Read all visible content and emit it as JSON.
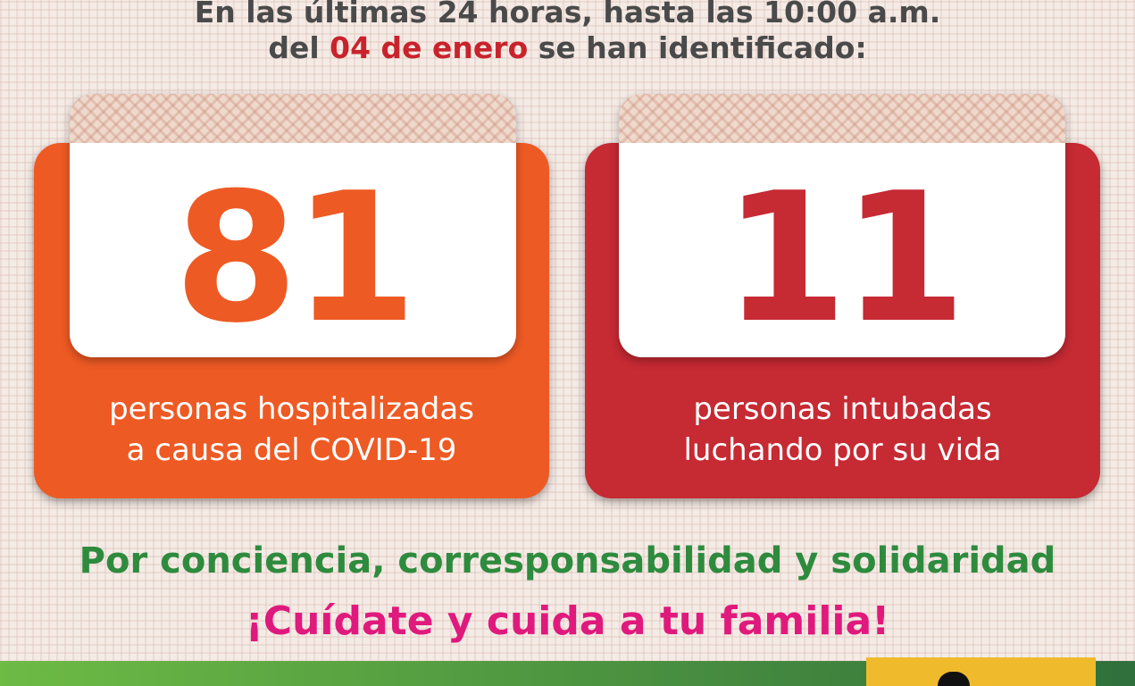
{
  "header": {
    "line1": "En las últimas 24 horas, hasta las 10:00 a.m.",
    "line2_prefix": "del ",
    "line2_date": "04 de enero",
    "line2_suffix": " se han identificado:"
  },
  "cards": [
    {
      "value": "81",
      "label_line1": "personas hospitalizadas",
      "label_line2": "a causa del COVID-19",
      "color": "#ee5a24"
    },
    {
      "value": "11",
      "label_line1": "personas intubadas",
      "label_line2": "luchando por su vida",
      "color": "#c62a33"
    }
  ],
  "slogan": {
    "line1": "Por conciencia, corresponsabilidad y solidaridad",
    "line2": "¡Cuídate y cuida a tu familia!"
  },
  "colors": {
    "green": "#2e8b3e",
    "magenta": "#e0197d",
    "date_red": "#c8232c"
  }
}
